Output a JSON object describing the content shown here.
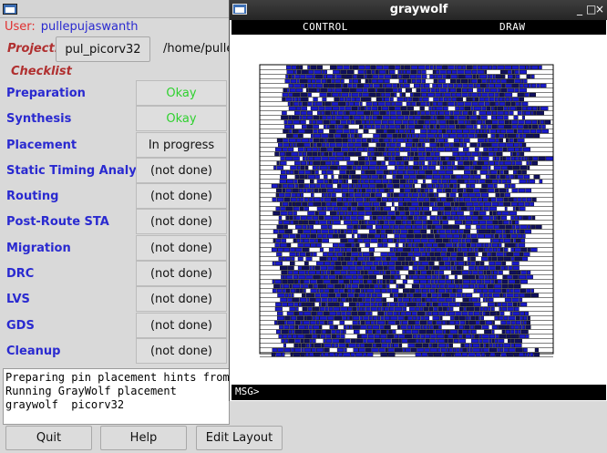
{
  "user": {
    "label": "User:",
    "name": "pullepujaswanth"
  },
  "project": {
    "label": "Project:",
    "name": "pul_picorv32",
    "path": "/home/pullepujaswanth"
  },
  "checklist": {
    "title": "Checklist",
    "steps": [
      {
        "name": "Preparation",
        "status": "Okay"
      },
      {
        "name": "Synthesis",
        "status": "Okay"
      },
      {
        "name": "Placement",
        "status": "In progress"
      },
      {
        "name": "Static Timing Analysis",
        "status": "(not done)"
      },
      {
        "name": "Routing",
        "status": "(not done)"
      },
      {
        "name": "Post-Route STA",
        "status": "(not done)"
      },
      {
        "name": "Migration",
        "status": "(not done)"
      },
      {
        "name": "DRC",
        "status": "(not done)"
      },
      {
        "name": "LVS",
        "status": "(not done)"
      },
      {
        "name": "GDS",
        "status": "(not done)"
      },
      {
        "name": "Cleanup",
        "status": "(not done)"
      }
    ]
  },
  "console": {
    "lines": [
      "Preparing pin placement hints from pi",
      "Running GrayWolf placement",
      "graywolf  picorv32"
    ]
  },
  "buttons": {
    "quit": "Quit",
    "help": "Help",
    "edit_layout": "Edit Layout"
  },
  "graywolf": {
    "title": "graywolf",
    "controls": [
      "_",
      "□",
      "×"
    ],
    "menu": {
      "control": "CONTROL",
      "draw": "DRAW"
    },
    "msg_prompt": "MSG>"
  },
  "colors": {
    "label_red": "#e03030",
    "step_blue": "#2a2ad0",
    "ok_green": "#2fd12f",
    "cell_blue": "#1a1acc",
    "gw_titlebar": "#2d2d2d"
  },
  "icons": {
    "window": "window-icon"
  }
}
